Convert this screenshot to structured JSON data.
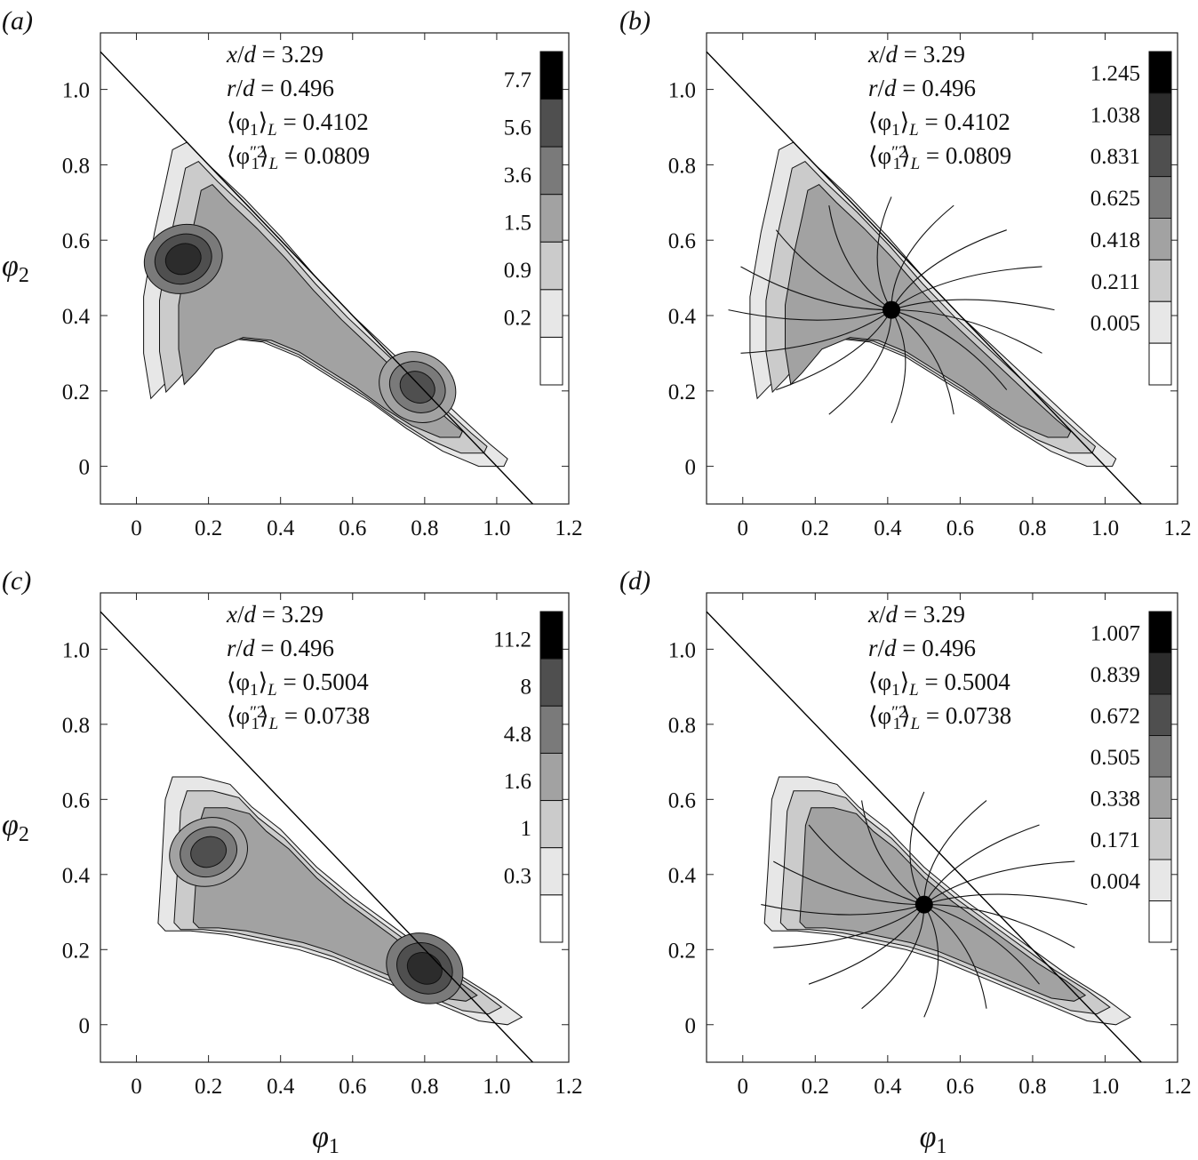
{
  "figure": {
    "xlabel_symbol": "φ",
    "xlabel_sub": "1",
    "ylabel_symbol": "φ",
    "ylabel_sub": "2",
    "xticks": [
      "0",
      "0.2",
      "0.4",
      "0.6",
      "0.8",
      "1.0",
      "1.2"
    ],
    "yticks": [
      "0",
      "0.2",
      "0.4",
      "0.6",
      "0.8",
      "1.0"
    ]
  },
  "chart_data": [
    {
      "type": "heatmap",
      "panel": "a",
      "panel_label": "(a)",
      "xlim": [
        -0.1,
        1.2
      ],
      "ylim": [
        -0.1,
        1.15
      ],
      "annotations": [
        "x/d = 3.29",
        "r/d = 0.496",
        "⟨φ1⟩L = 0.4102",
        "⟨φ1″2⟩L = 0.0809"
      ],
      "annotation_parts": {
        "xd": "3.29",
        "rd": "0.496",
        "mean": "0.4102",
        "var": "0.0809"
      },
      "colorbar_levels": [
        "7.7",
        "5.6",
        "3.6",
        "1.5",
        "0.9",
        "0.2"
      ],
      "diagonal_line": {
        "from": [
          -0.1,
          1.1
        ],
        "to": [
          1.1,
          -0.1
        ]
      },
      "mean_marker": null,
      "shape": "upper",
      "blobs": [
        {
          "x": 0.13,
          "y": 0.55,
          "level": 6
        },
        {
          "x": 0.78,
          "y": 0.21,
          "level": 5
        }
      ]
    },
    {
      "type": "heatmap",
      "panel": "b",
      "panel_label": "(b)",
      "xlim": [
        -0.1,
        1.2
      ],
      "ylim": [
        -0.1,
        1.15
      ],
      "annotations": [
        "x/d = 3.29",
        "r/d = 0.496",
        "⟨φ1⟩L = 0.4102",
        "⟨φ1″2⟩L = 0.0809"
      ],
      "annotation_parts": {
        "xd": "3.29",
        "rd": "0.496",
        "mean": "0.4102",
        "var": "0.0809"
      },
      "colorbar_levels": [
        "1.245",
        "1.038",
        "0.831",
        "0.625",
        "0.418",
        "0.211",
        "0.005"
      ],
      "diagonal_line": {
        "from": [
          -0.1,
          1.1
        ],
        "to": [
          1.1,
          -0.1
        ]
      },
      "mean_marker": {
        "x": 0.4102,
        "y": 0.415
      },
      "shape": "upper",
      "streamlines": true
    },
    {
      "type": "heatmap",
      "panel": "c",
      "panel_label": "(c)",
      "xlim": [
        -0.1,
        1.2
      ],
      "ylim": [
        -0.1,
        1.15
      ],
      "annotations": [
        "x/d = 3.29",
        "r/d = 0.496",
        "⟨φ1⟩L = 0.5004",
        "⟨φ1″2⟩L = 0.0738"
      ],
      "annotation_parts": {
        "xd": "3.29",
        "rd": "0.496",
        "mean": "0.5004",
        "var": "0.0738"
      },
      "colorbar_levels": [
        "11.2",
        "8",
        "4.8",
        "1.6",
        "1",
        "0.3"
      ],
      "diagonal_line": {
        "from": [
          -0.1,
          1.1
        ],
        "to": [
          1.1,
          -0.1
        ]
      },
      "mean_marker": null,
      "shape": "lower",
      "blobs": [
        {
          "x": 0.2,
          "y": 0.46,
          "level": 5
        },
        {
          "x": 0.8,
          "y": 0.15,
          "level": 6
        }
      ]
    },
    {
      "type": "heatmap",
      "panel": "d",
      "panel_label": "(d)",
      "xlim": [
        -0.1,
        1.2
      ],
      "ylim": [
        -0.1,
        1.15
      ],
      "annotations": [
        "x/d = 3.29",
        "r/d = 0.496",
        "⟨φ1⟩L = 0.5004",
        "⟨φ1″2⟩L = 0.0738"
      ],
      "annotation_parts": {
        "xd": "3.29",
        "rd": "0.496",
        "mean": "0.5004",
        "var": "0.0738"
      },
      "colorbar_levels": [
        "1.007",
        "0.839",
        "0.672",
        "0.505",
        "0.338",
        "0.171",
        "0.004"
      ],
      "diagonal_line": {
        "from": [
          -0.1,
          1.1
        ],
        "to": [
          1.1,
          -0.1
        ]
      },
      "mean_marker": {
        "x": 0.5004,
        "y": 0.32
      },
      "shape": "lower",
      "streamlines": true
    }
  ]
}
